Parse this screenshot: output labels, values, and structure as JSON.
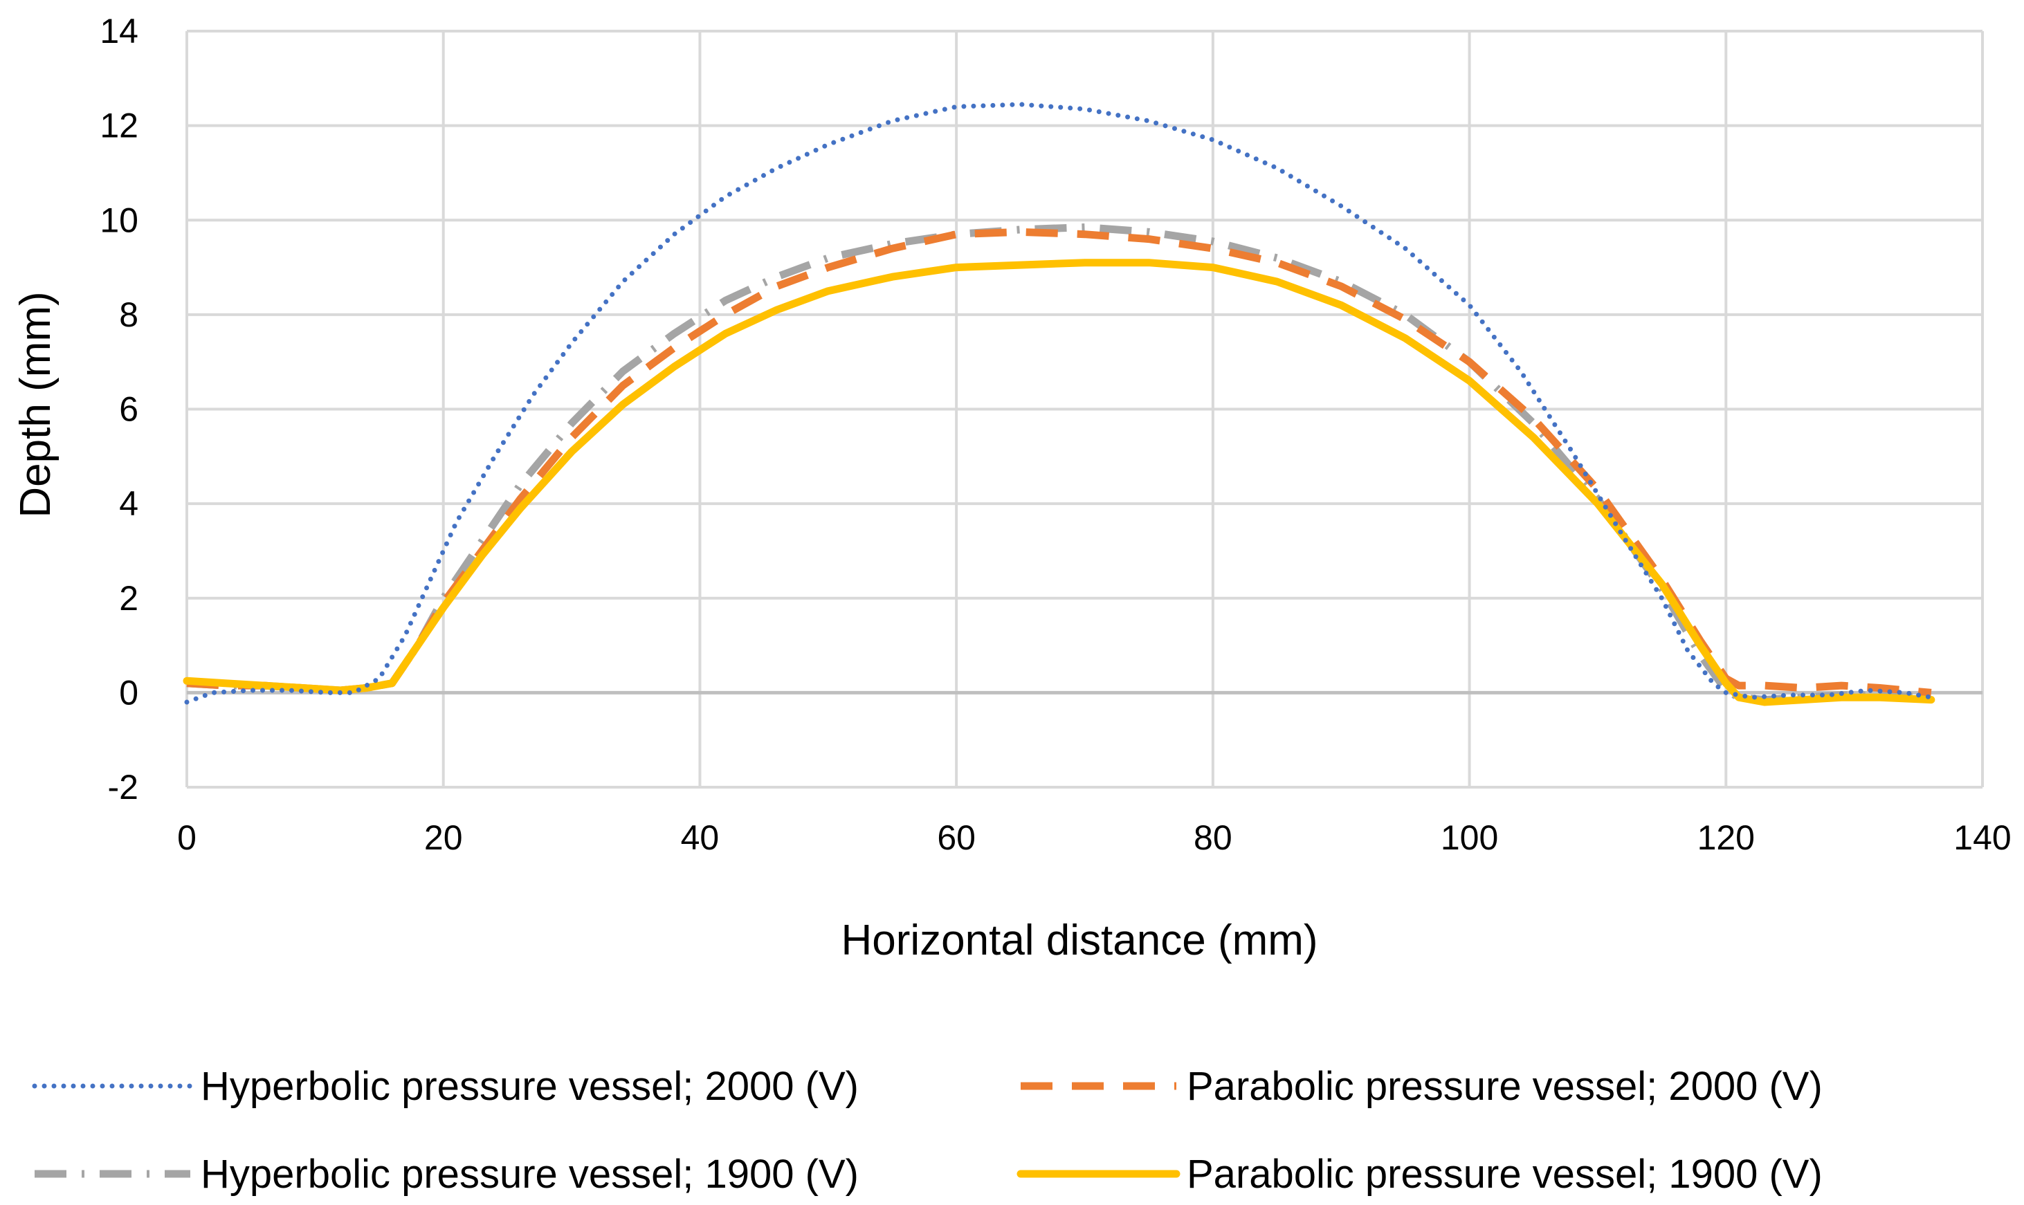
{
  "chart_data": {
    "type": "line",
    "title": "",
    "xlabel": "Horizontal distance (mm)",
    "ylabel": "Depth (mm)",
    "xlim": [
      0,
      140
    ],
    "ylim": [
      -2,
      14
    ],
    "xticks": [
      0,
      20,
      40,
      60,
      80,
      100,
      120,
      140
    ],
    "yticks": [
      -2,
      0,
      2,
      4,
      6,
      8,
      10,
      12,
      14
    ],
    "grid": true,
    "legend_position": "bottom",
    "series": [
      {
        "name": "Hyperbolic pressure vessel; 2000 (V)",
        "color": "#4472C4",
        "style": "dotted",
        "x": [
          0,
          2,
          5,
          8,
          11,
          13,
          15,
          17,
          19,
          21,
          24,
          27,
          30,
          34,
          38,
          42,
          46,
          50,
          55,
          60,
          65,
          70,
          75,
          80,
          85,
          90,
          95,
          100,
          104,
          108,
          112,
          115,
          117,
          119,
          120,
          122,
          125,
          128,
          131,
          134,
          136
        ],
        "y": [
          -0.2,
          0.0,
          0.05,
          0.05,
          0.0,
          0.0,
          0.3,
          1.2,
          2.4,
          3.6,
          5.0,
          6.3,
          7.4,
          8.7,
          9.7,
          10.5,
          11.1,
          11.6,
          12.1,
          12.4,
          12.45,
          12.35,
          12.1,
          11.7,
          11.1,
          10.3,
          9.4,
          8.2,
          6.8,
          5.1,
          3.3,
          2.0,
          0.9,
          0.2,
          0.0,
          -0.1,
          -0.05,
          -0.05,
          0.05,
          0.0,
          -0.1
        ]
      },
      {
        "name": "Parabolic pressure vessel; 2000 (V)",
        "color": "#ED7D31",
        "style": "dashed",
        "x": [
          0,
          3,
          6,
          9,
          12,
          14,
          16,
          18,
          20,
          23,
          26,
          30,
          34,
          38,
          42,
          46,
          50,
          55,
          60,
          65,
          70,
          75,
          80,
          85,
          90,
          95,
          100,
          105,
          110,
          115,
          118,
          120,
          121,
          123,
          126,
          129,
          132,
          136
        ],
        "y": [
          0.2,
          0.15,
          0.15,
          0.1,
          0.05,
          0.1,
          0.2,
          1.0,
          1.9,
          3.0,
          4.1,
          5.4,
          6.5,
          7.3,
          8.0,
          8.6,
          9.0,
          9.4,
          9.7,
          9.75,
          9.7,
          9.6,
          9.4,
          9.1,
          8.6,
          7.9,
          7.0,
          5.8,
          4.3,
          2.4,
          1.1,
          0.3,
          0.15,
          0.15,
          0.1,
          0.15,
          0.1,
          0.0
        ]
      },
      {
        "name": "Hyperbolic pressure vessel; 1900 (V)",
        "color": "#A5A5A5",
        "style": "dashdot",
        "x": [
          0,
          3,
          6,
          9,
          12,
          14,
          16,
          18,
          20,
          23,
          26,
          30,
          34,
          38,
          42,
          46,
          50,
          55,
          60,
          65,
          70,
          75,
          80,
          85,
          90,
          95,
          100,
          105,
          110,
          115,
          118,
          120,
          121,
          123,
          126,
          129,
          132,
          136
        ],
        "y": [
          0.2,
          0.15,
          0.15,
          0.1,
          0.05,
          0.1,
          0.2,
          1.0,
          2.0,
          3.2,
          4.4,
          5.7,
          6.8,
          7.6,
          8.3,
          8.8,
          9.2,
          9.5,
          9.7,
          9.8,
          9.85,
          9.75,
          9.55,
          9.2,
          8.7,
          8.0,
          7.0,
          5.7,
          4.1,
          2.2,
          0.8,
          0.05,
          -0.1,
          -0.15,
          -0.1,
          -0.05,
          -0.05,
          -0.1
        ]
      },
      {
        "name": "Parabolic pressure vessel; 1900 (V)",
        "color": "#FFC000",
        "style": "solid",
        "x": [
          0,
          3,
          6,
          9,
          12,
          14,
          16,
          18,
          20,
          23,
          26,
          30,
          34,
          38,
          42,
          46,
          50,
          55,
          60,
          65,
          70,
          75,
          80,
          85,
          90,
          95,
          100,
          105,
          110,
          115,
          118,
          120,
          121,
          123,
          126,
          129,
          132,
          136
        ],
        "y": [
          0.25,
          0.2,
          0.15,
          0.1,
          0.05,
          0.1,
          0.2,
          1.0,
          1.8,
          2.9,
          3.9,
          5.1,
          6.1,
          6.9,
          7.6,
          8.1,
          8.5,
          8.8,
          9.0,
          9.05,
          9.1,
          9.1,
          9.0,
          8.7,
          8.2,
          7.5,
          6.6,
          5.4,
          4.0,
          2.3,
          1.0,
          0.2,
          -0.1,
          -0.2,
          -0.15,
          -0.1,
          -0.1,
          -0.15
        ]
      }
    ]
  }
}
